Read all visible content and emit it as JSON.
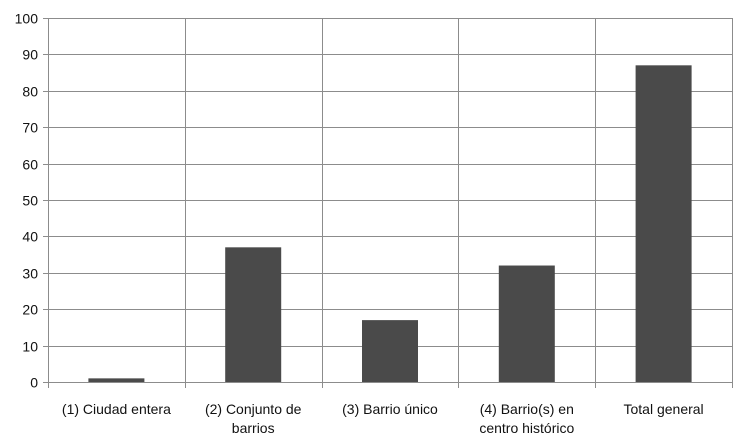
{
  "chart_data": {
    "type": "bar",
    "categories": [
      [
        "(1) Ciudad entera"
      ],
      [
        "(2) Conjunto de",
        "barrios"
      ],
      [
        "(3) Barrio único"
      ],
      [
        "(4) Barrio(s) en",
        "centro histórico"
      ],
      [
        "Total general"
      ]
    ],
    "values": [
      1,
      37,
      17,
      32,
      87
    ],
    "ylim": [
      0,
      100
    ],
    "yticks": [
      0,
      10,
      20,
      30,
      40,
      50,
      60,
      70,
      80,
      90,
      100
    ],
    "grid": true,
    "legend": "none",
    "colors": {
      "bar": "#4a4a4a",
      "grid": "#8c8c8c",
      "axis": "#8c8c8c"
    }
  }
}
